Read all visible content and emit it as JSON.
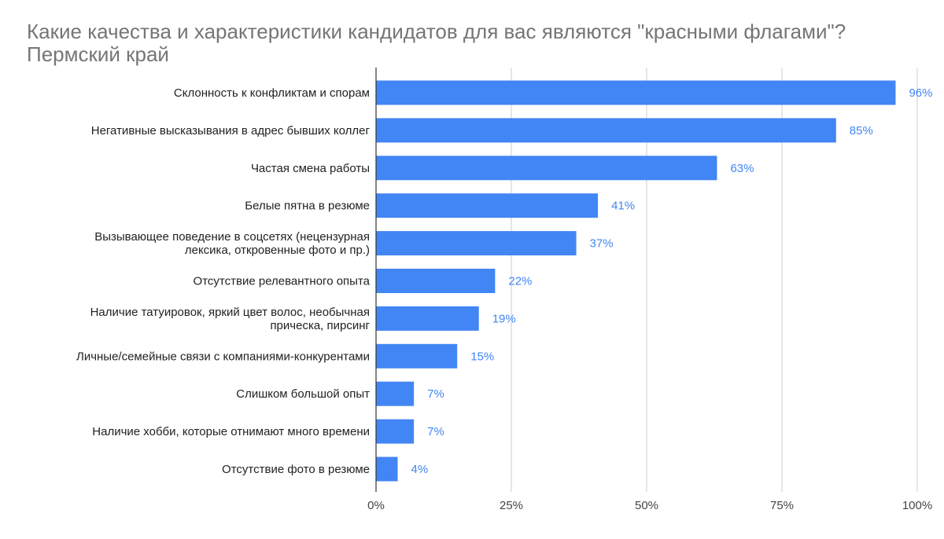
{
  "chart_data": {
    "type": "bar",
    "orientation": "horizontal",
    "title": "Какие качества и характеристики кандидатов для вас являются \"красными флагами\"? Пермский край",
    "categories": [
      [
        "Склонность к конфликтам и спорам"
      ],
      [
        "Негативные высказывания в адрес бывших коллег"
      ],
      [
        "Частая смена работы"
      ],
      [
        "Белые пятна в резюме"
      ],
      [
        "Вызывающее поведение в соцсетях (нецензурная",
        "лексика, откровенные фото и пр.)"
      ],
      [
        "Отсутствие релевантного опыта"
      ],
      [
        "Наличие татуировок, яркий цвет волос, необычная",
        "прическа, пирсинг"
      ],
      [
        "Личные/семейные связи с компаниями-конкурентами"
      ],
      [
        "Слишком большой опыт"
      ],
      [
        "Наличие хобби, которые отнимают много времени"
      ],
      [
        "Отсутствие фото в резюме"
      ]
    ],
    "values": [
      96,
      85,
      63,
      41,
      37,
      22,
      19,
      15,
      7,
      7,
      4
    ],
    "data_labels": [
      "96%",
      "85%",
      "63%",
      "41%",
      "37%",
      "22%",
      "19%",
      "15%",
      "7%",
      "7%",
      "4%"
    ],
    "x_ticks": [
      0,
      25,
      50,
      75,
      100
    ],
    "x_tick_labels": [
      "0%",
      "25%",
      "50%",
      "75%",
      "100%"
    ],
    "xlim": [
      0,
      100
    ],
    "xlabel": "",
    "ylabel": "",
    "grid": true,
    "legend": "none",
    "bar_color": "#4285f4",
    "label_color": "#4285f4",
    "grid_color": "#cccccc",
    "axis_color": "#333333"
  }
}
